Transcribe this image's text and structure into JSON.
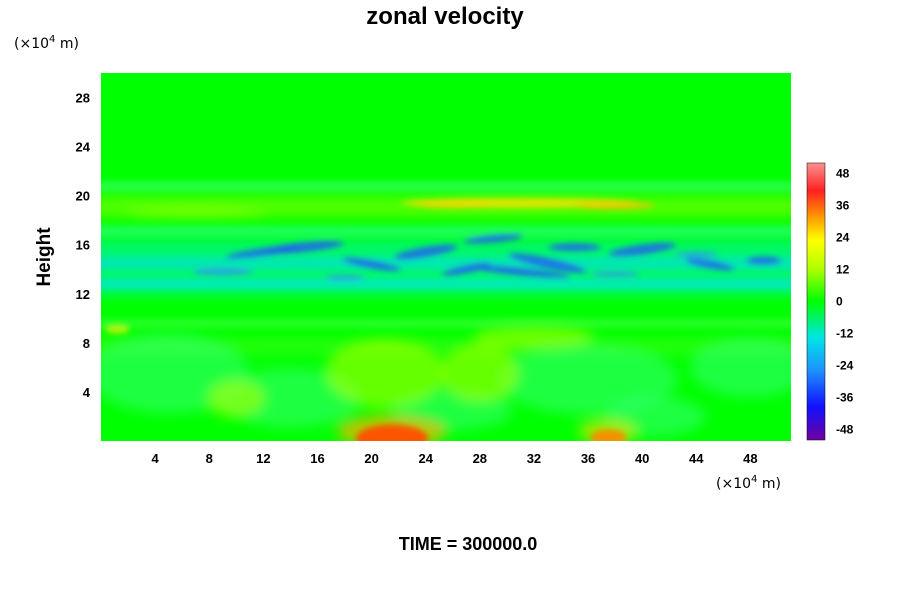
{
  "chart_data": {
    "type": "heatmap",
    "title": "zonal velocity",
    "ylabel": "Height",
    "xlabel": "",
    "x_unit_prefix": "(×10",
    "x_unit_exp": "4",
    "x_unit_suffix": " m)",
    "y_unit_prefix": "(×10",
    "y_unit_exp": "4",
    "y_unit_suffix": " m)",
    "xlim": [
      0,
      51
    ],
    "ylim": [
      0,
      30
    ],
    "xticks": [
      4,
      8,
      12,
      16,
      20,
      24,
      28,
      32,
      36,
      40,
      44,
      48
    ],
    "yticks": [
      4,
      8,
      12,
      16,
      20,
      24,
      28
    ],
    "colorbar": {
      "range": [
        -52,
        52
      ],
      "ticks": [
        48,
        36,
        24,
        12,
        0,
        -12,
        -24,
        -36,
        -48
      ]
    },
    "footer": "TIME = 300000.0",
    "colors": {
      "background": "#00ff00",
      "negative_extreme": "#7000a0",
      "positive_extreme": "#ff8080"
    }
  }
}
